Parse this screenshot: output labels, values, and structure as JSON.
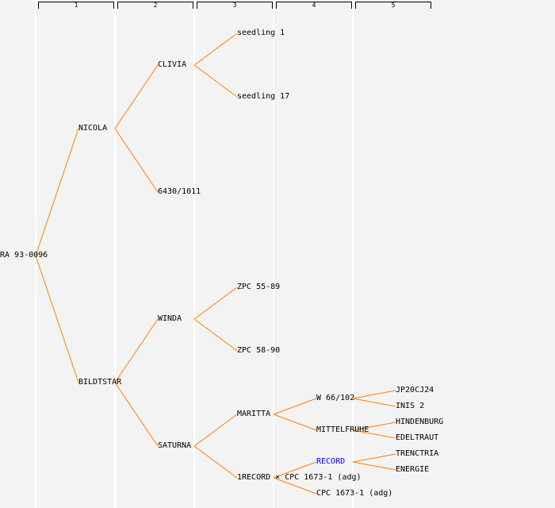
{
  "generations": [
    "1",
    "2",
    "3",
    "4",
    "5"
  ],
  "colors": {
    "line": "#ff8000",
    "link": "#0000ff",
    "text": "#000000"
  },
  "tree": {
    "label": "RA 93-0096",
    "children": [
      {
        "label": "NICOLA",
        "children": [
          {
            "label": "CLIVIA",
            "children": [
              {
                "label": "seedling 1"
              },
              {
                "label": "seedling 17"
              }
            ]
          },
          {
            "label": "6430/1011"
          }
        ]
      },
      {
        "label": "BILDTSTAR",
        "children": [
          {
            "label": "WINDA",
            "children": [
              {
                "label": "ZPC 55-89"
              },
              {
                "label": "ZPC 58-90"
              }
            ]
          },
          {
            "label": "SATURNA",
            "children": [
              {
                "label": "MARITTA",
                "children": [
                  {
                    "label": "W 66/102",
                    "children": [
                      {
                        "label": "JP20CJ24"
                      },
                      {
                        "label": "INIS 2"
                      }
                    ]
                  },
                  {
                    "label": "MITTELFRUHE",
                    "children": [
                      {
                        "label": "HINDENBURG"
                      },
                      {
                        "label": "EDELTRAUT"
                      }
                    ]
                  }
                ]
              },
              {
                "label": "1RECORD × CPC 1673-1 (adg)",
                "children": [
                  {
                    "label": "RECORD",
                    "link": true,
                    "children": [
                      {
                        "label": "TRENCTRIA"
                      },
                      {
                        "label": "ENERGIE"
                      }
                    ]
                  },
                  {
                    "label": "CPC 1673-1 (adg)"
                  }
                ]
              }
            ]
          }
        ]
      }
    ]
  }
}
